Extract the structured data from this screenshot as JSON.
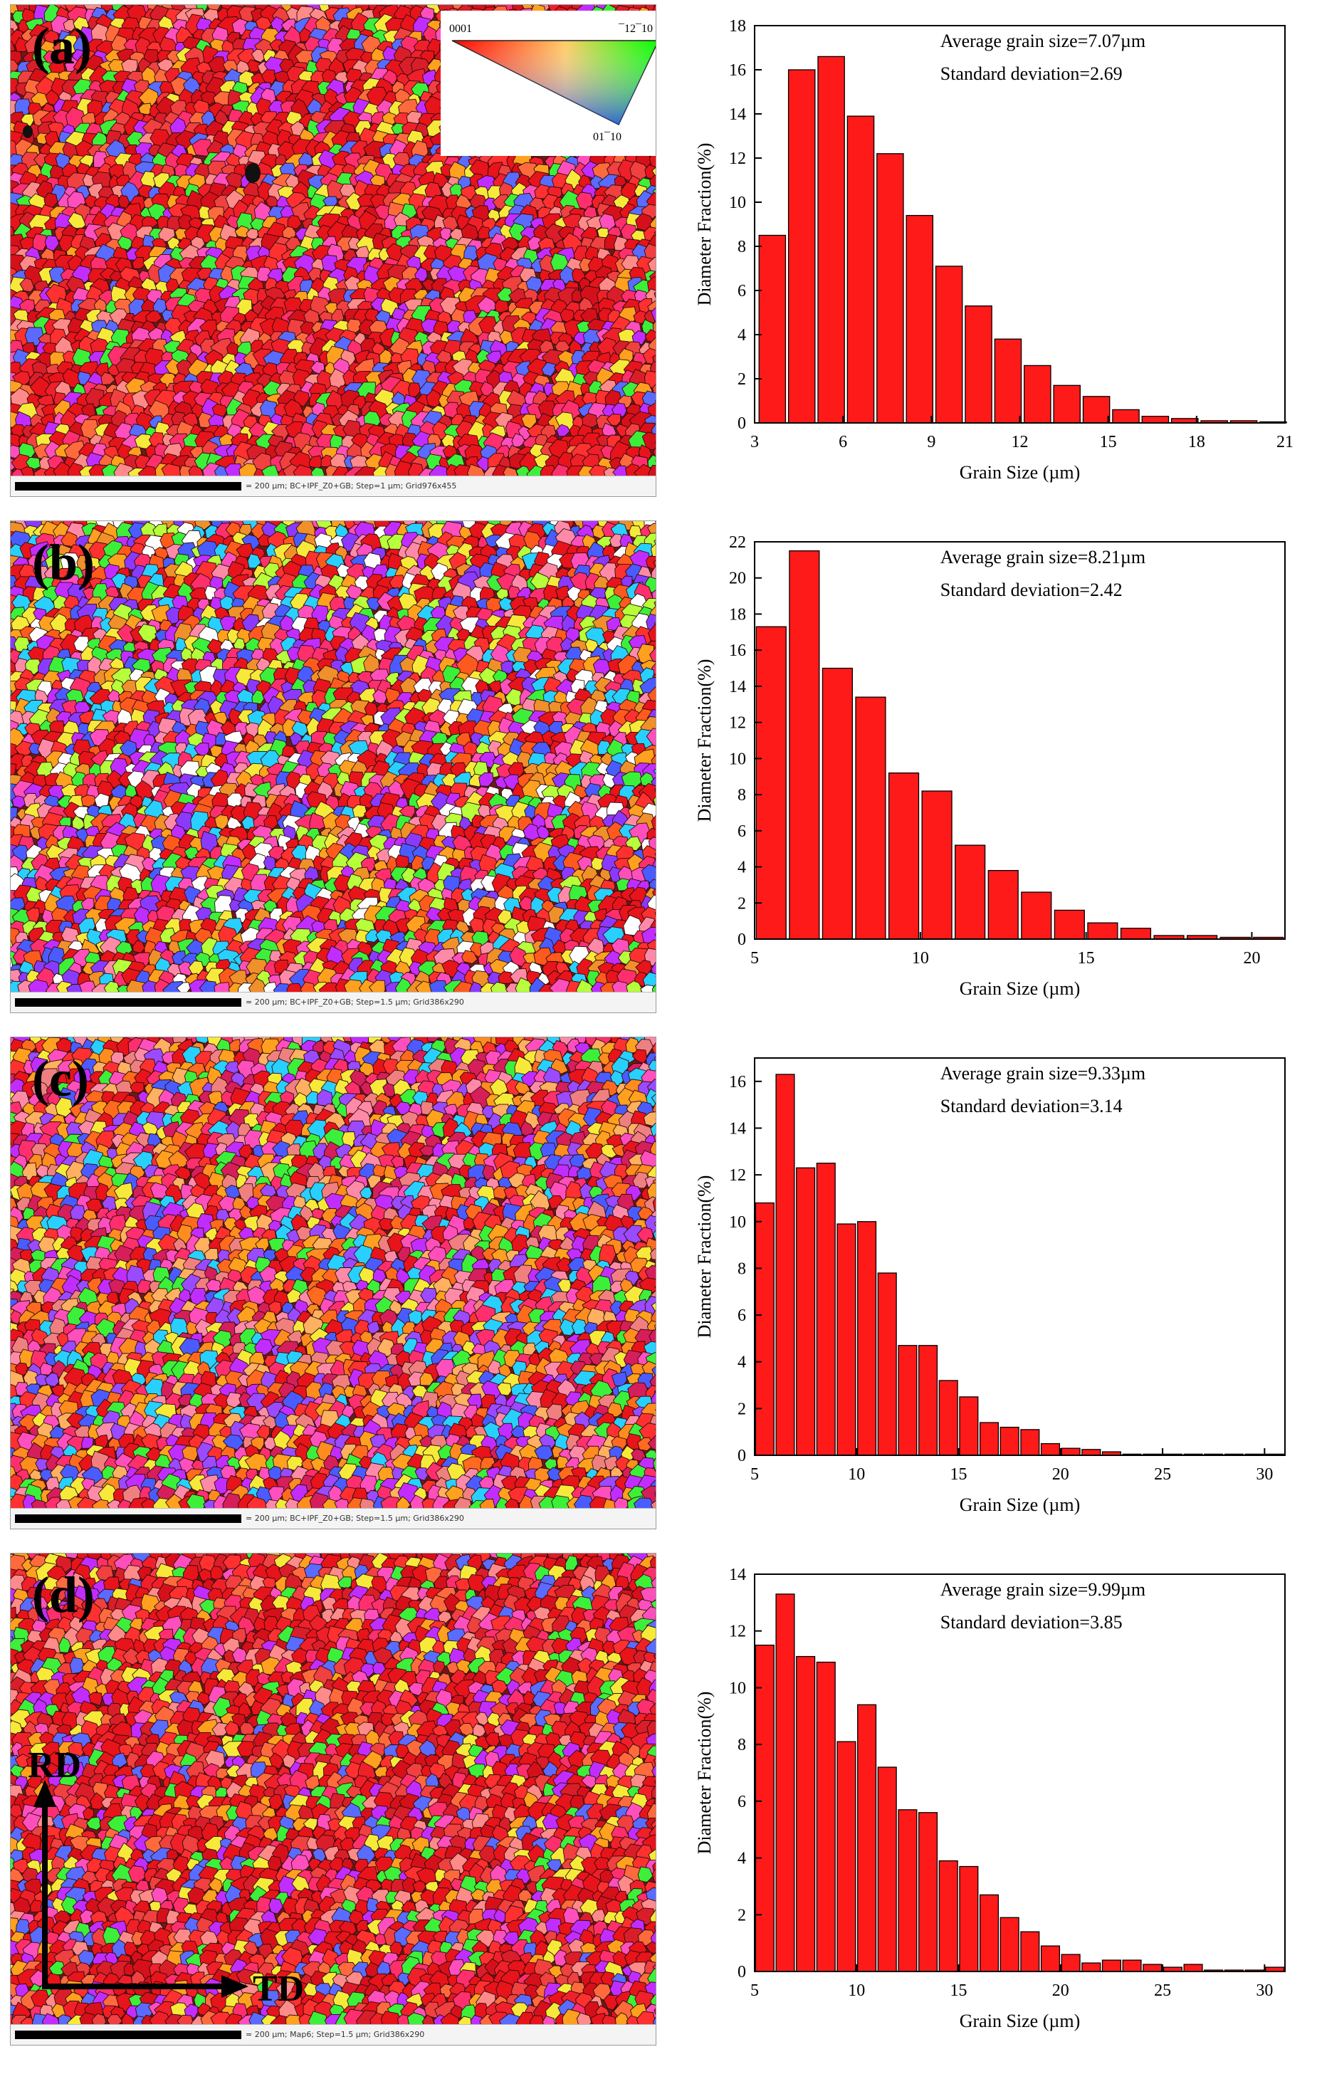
{
  "colors": {
    "bar_fill": "#ff1a1a",
    "bar_stroke": "#000000",
    "axis": "#000000"
  },
  "ipf_legend": {
    "top_left": "0001",
    "top_right": "¯12¯10",
    "bottom": "01¯10"
  },
  "axes_labels": {
    "rd": "RD",
    "td": "TD"
  },
  "panels": [
    {
      "label": "(a)",
      "scalebar_text": "= 200 µm; BC+IPF_Z0+GB; Step=1 µm; Grid976x455",
      "map_theme": "red_dominant"
    },
    {
      "label": "(b)",
      "scalebar_text": "= 200 µm; BC+IPF_Z0+GB; Step=1.5 µm; Grid386x290",
      "map_theme": "mixed"
    },
    {
      "label": "(c)",
      "scalebar_text": "= 200 µm; BC+IPF_Z0+GB; Step=1.5 µm; Grid386x290",
      "map_theme": "mixed_orange"
    },
    {
      "label": "(d)",
      "scalebar_text": "= 200 µm; Map6; Step=1.5 µm; Grid386x290",
      "map_theme": "red_dominant"
    }
  ],
  "chart_data": [
    {
      "type": "bar",
      "xlabel": "Grain Size (µm)",
      "ylabel": "Diameter Fraction(%)",
      "xlim": [
        3,
        21
      ],
      "ylim": [
        0,
        18
      ],
      "xticks": [
        3,
        6,
        9,
        12,
        15,
        18,
        21
      ],
      "yticks": [
        0,
        2,
        4,
        6,
        8,
        10,
        12,
        14,
        16,
        18
      ],
      "bar_width": 0.9,
      "x": [
        3.6,
        4.6,
        5.6,
        6.6,
        7.6,
        8.6,
        9.6,
        10.6,
        11.6,
        12.6,
        13.6,
        14.6,
        15.6,
        16.6,
        17.6,
        18.6,
        19.6,
        20.6
      ],
      "values": [
        8.5,
        16.0,
        16.6,
        13.9,
        12.2,
        9.4,
        7.1,
        5.3,
        3.8,
        2.6,
        1.7,
        1.2,
        0.6,
        0.3,
        0.2,
        0.1,
        0.1,
        0.05
      ],
      "annotations": [
        "Average grain size=7.07µm",
        "Standard deviation=2.69"
      ]
    },
    {
      "type": "bar",
      "xlabel": "Grain Size (µm)",
      "ylabel": "Diameter Fraction(%)",
      "xlim": [
        5,
        21
      ],
      "ylim": [
        0,
        22
      ],
      "xticks": [
        5,
        10,
        15,
        20
      ],
      "yticks": [
        0,
        2,
        4,
        6,
        8,
        10,
        12,
        14,
        16,
        18,
        20,
        22
      ],
      "bar_width": 0.9,
      "x": [
        5.5,
        6.5,
        7.5,
        8.5,
        9.5,
        10.5,
        11.5,
        12.5,
        13.5,
        14.5,
        15.5,
        16.5,
        17.5,
        18.5,
        19.5,
        20.5
      ],
      "values": [
        17.3,
        21.5,
        15.0,
        13.4,
        9.2,
        8.2,
        5.2,
        3.8,
        2.6,
        1.6,
        0.9,
        0.6,
        0.2,
        0.2,
        0.1,
        0.1
      ],
      "annotations": [
        "Average grain size=8.21µm",
        "Standard deviation=2.42"
      ]
    },
    {
      "type": "bar",
      "xlabel": "Grain Size (µm)",
      "ylabel": "Diameter Fraction(%)",
      "xlim": [
        5,
        31
      ],
      "ylim": [
        0,
        17
      ],
      "xticks": [
        5,
        10,
        15,
        20,
        25,
        30
      ],
      "yticks": [
        0,
        2,
        4,
        6,
        8,
        10,
        12,
        14,
        16
      ],
      "bar_width": 0.9,
      "x": [
        5.5,
        6.5,
        7.5,
        8.5,
        9.5,
        10.5,
        11.5,
        12.5,
        13.5,
        14.5,
        15.5,
        16.5,
        17.5,
        18.5,
        19.5,
        20.5,
        21.5,
        22.5,
        23.5,
        24.5,
        25.5,
        26.5,
        27.5,
        28.5,
        29.5,
        30.5
      ],
      "values": [
        10.8,
        16.3,
        12.3,
        12.5,
        9.9,
        10.0,
        7.8,
        4.7,
        4.7,
        3.2,
        2.5,
        1.4,
        1.2,
        1.1,
        0.5,
        0.3,
        0.25,
        0.15,
        0.05,
        0.05,
        0.05,
        0.05,
        0.05,
        0.05,
        0.05,
        0.05
      ],
      "annotations": [
        "Average grain size=9.33µm",
        "Standard deviation=3.14"
      ]
    },
    {
      "type": "bar",
      "xlabel": "Grain Size (µm)",
      "ylabel": "Diameter Fraction(%)",
      "xlim": [
        5,
        31
      ],
      "ylim": [
        0,
        14
      ],
      "xticks": [
        5,
        10,
        15,
        20,
        25,
        30
      ],
      "yticks": [
        0,
        2,
        4,
        6,
        8,
        10,
        12,
        14
      ],
      "bar_width": 0.9,
      "x": [
        5.5,
        6.5,
        7.5,
        8.5,
        9.5,
        10.5,
        11.5,
        12.5,
        13.5,
        14.5,
        15.5,
        16.5,
        17.5,
        18.5,
        19.5,
        20.5,
        21.5,
        22.5,
        23.5,
        24.5,
        25.5,
        26.5,
        27.5,
        28.5,
        29.5,
        30.5
      ],
      "values": [
        11.5,
        13.3,
        11.1,
        10.9,
        8.1,
        9.4,
        7.2,
        5.7,
        5.6,
        3.9,
        3.7,
        2.7,
        1.9,
        1.4,
        0.9,
        0.6,
        0.3,
        0.4,
        0.4,
        0.25,
        0.15,
        0.25,
        0.05,
        0.05,
        0.05,
        0.15
      ],
      "annotations": [
        "Average grain size=9.99µm",
        "Standard deviation=3.85"
      ]
    }
  ]
}
